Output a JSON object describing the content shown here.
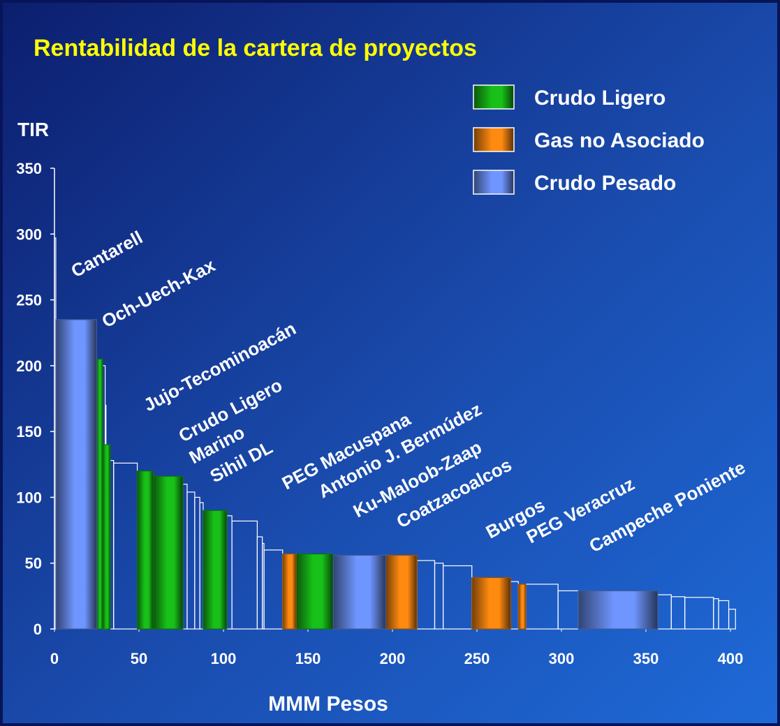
{
  "chart_data": {
    "type": "variable-width-bar",
    "title": "Rentabilidad de la cartera de proyectos",
    "y_label": "TIR",
    "x_label": "MMM Pesos",
    "xlim": [
      0,
      400
    ],
    "xticks": [
      0,
      50,
      100,
      150,
      200,
      250,
      300,
      350,
      400
    ],
    "ylim": [
      0,
      350
    ],
    "yticks": [
      0,
      50,
      100,
      150,
      200,
      250,
      300,
      350
    ],
    "series": [
      {
        "name": "Crudo Ligero",
        "color": "#18c018",
        "segments": [
          [
            25,
            28.5,
            205
          ],
          [
            28.5,
            33,
            140
          ],
          [
            49,
            58.5,
            120
          ],
          [
            58.5,
            76,
            116
          ],
          [
            88,
            102,
            90
          ],
          [
            143,
            165,
            57
          ]
        ]
      },
      {
        "name": "Gas no Asociado",
        "color": "#ff8a10",
        "segments": [
          [
            135,
            143,
            57
          ],
          [
            196,
            214.5,
            56
          ],
          [
            247,
            270,
            39
          ],
          [
            274.5,
            279,
            34
          ]
        ]
      },
      {
        "name": "Crudo Pesado",
        "color": "#6f96ff",
        "segments": [
          [
            1,
            25,
            235
          ],
          [
            165,
            196,
            56
          ],
          [
            310,
            357,
            29
          ]
        ]
      }
    ],
    "unclassified": {
      "color": "#ffffff",
      "segments": [
        [
          0,
          0.8,
          297
        ],
        [
          28.5,
          30,
          200
        ],
        [
          30,
          30.5,
          170
        ],
        [
          33,
          35,
          128
        ],
        [
          35,
          49,
          126
        ],
        [
          76,
          78.5,
          110
        ],
        [
          78.5,
          83,
          104
        ],
        [
          83,
          86,
          100
        ],
        [
          86,
          88,
          96
        ],
        [
          102,
          105,
          86
        ],
        [
          105,
          120,
          82
        ],
        [
          120,
          123,
          70
        ],
        [
          123,
          124,
          65
        ],
        [
          124,
          135,
          60
        ],
        [
          214.5,
          225,
          52
        ],
        [
          225,
          230,
          50
        ],
        [
          230,
          247,
          48
        ],
        [
          270,
          274.5,
          36
        ],
        [
          279,
          298,
          34
        ],
        [
          298,
          310,
          29
        ],
        [
          357,
          365,
          26
        ],
        [
          365,
          373,
          24.5
        ],
        [
          373,
          390,
          24
        ],
        [
          390,
          393,
          23
        ],
        [
          393,
          399,
          21.5
        ],
        [
          399,
          403,
          15
        ]
      ]
    },
    "annotations": [
      "Cantarell",
      "Och-Uech-Kax",
      "Jujo-Tecominoacán",
      "Crudo Ligero",
      "Marino",
      "Sihil DL",
      "PEG Macuspana",
      "Antonio J. Bermúdez",
      "Ku-Maloob-Zaap",
      "Coatzacoalcos",
      "Burgos",
      "PEG Veracruz",
      "Campeche Poniente"
    ]
  }
}
